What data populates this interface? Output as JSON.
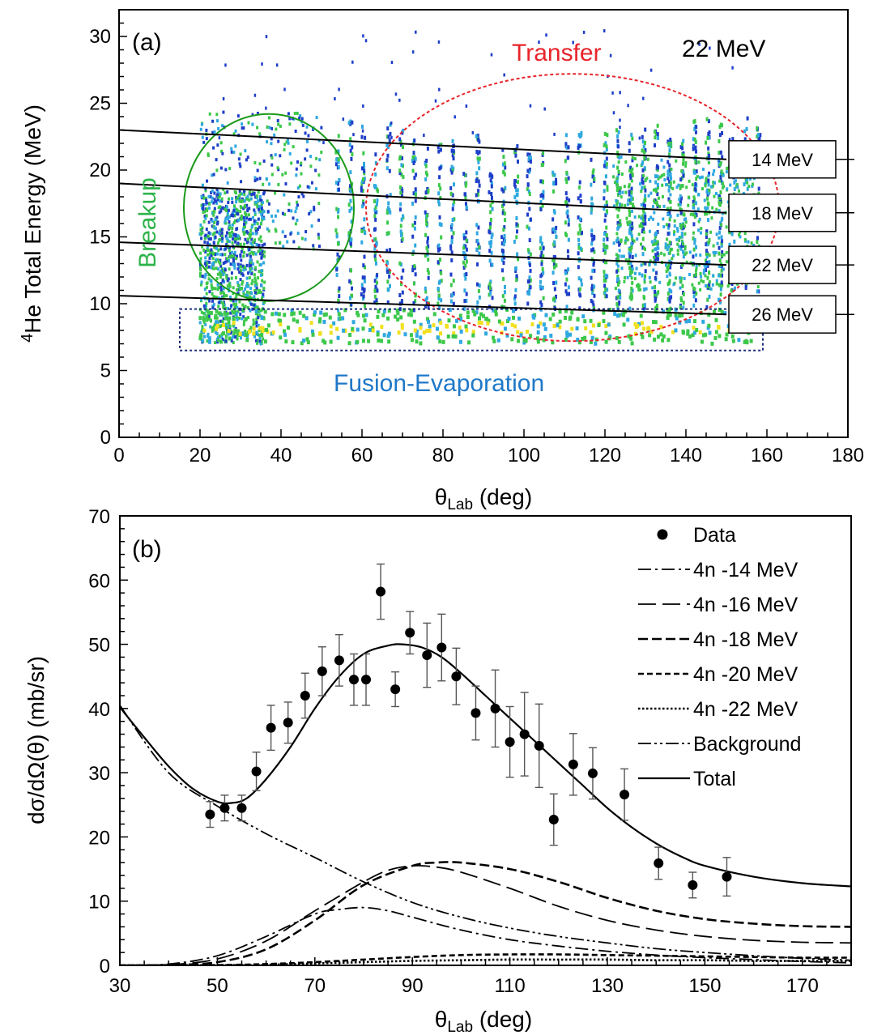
{
  "chart_data": [
    {
      "panel": "(a)",
      "type": "heatmap",
      "title": "22 MeV",
      "xlabel_main": "θ",
      "xlabel_sub": "Lab",
      "xlabel_unit": " (deg)",
      "ylabel_sup": "4",
      "ylabel_main": "He Total Energy (MeV)",
      "xlim": [
        0,
        180
      ],
      "ylim": [
        0,
        32
      ],
      "xticks": [
        0,
        20,
        40,
        60,
        80,
        100,
        120,
        140,
        160,
        180
      ],
      "yticks": [
        0,
        5,
        10,
        15,
        20,
        25,
        30
      ],
      "annotations": [
        {
          "text": "(a)",
          "color": "#000000"
        },
        {
          "text": "Transfer",
          "color": "#e8242a"
        },
        {
          "text": "Breakup",
          "color": "#2cb34a"
        },
        {
          "text": "Fusion-Evaporation",
          "color": "#1f78c8"
        }
      ],
      "kinematic_lines": [
        {
          "label": "14 MeV",
          "x": [
            0,
            150
          ],
          "y": [
            23.0,
            20.8
          ]
        },
        {
          "label": "18 MeV",
          "x": [
            0,
            150
          ],
          "y": [
            19.0,
            16.8
          ]
        },
        {
          "label": "22 MeV",
          "x": [
            0,
            150
          ],
          "y": [
            14.6,
            12.9
          ]
        },
        {
          "label": "26 MeV",
          "x": [
            0,
            150
          ],
          "y": [
            10.6,
            9.2
          ]
        }
      ],
      "regions": {
        "breakup_circle": {
          "cx": 37,
          "cy": 17.2,
          "rx": 21,
          "ry": 7.0,
          "color": "#1a9a1a"
        },
        "transfer_ellipse": {
          "cx": 112,
          "cy": 17.2,
          "rx": 51,
          "ry": 10.0,
          "color": "#e8242a"
        },
        "fusion_box": {
          "x0": 15,
          "x1": 159,
          "y0": 6.5,
          "y1": 9.6,
          "color": "#1a2a7a"
        }
      },
      "colors": {
        "low": "#1e3fc8",
        "mid": "#2fa8e0",
        "high": "#3cc84a",
        "peak": "#f0e020"
      }
    },
    {
      "panel": "(b)",
      "type": "scatter",
      "xlabel_main": "θ",
      "xlabel_sub": "Lab",
      "xlabel_unit": " (deg)",
      "ylabel": "dσ/dΩ(θ) (mb/sr)",
      "xlim": [
        30,
        180
      ],
      "ylim": [
        0,
        70
      ],
      "xticks": [
        30,
        50,
        70,
        90,
        110,
        130,
        150,
        170
      ],
      "yticks": [
        0,
        10,
        20,
        30,
        40,
        50,
        60,
        70
      ],
      "annotations": [
        {
          "text": "(b)"
        }
      ],
      "legend_labels": [
        "Data",
        "4n -14 MeV",
        "4n -16 MeV",
        "4n -18 MeV",
        "4n -20 MeV",
        "4n -22 MeV",
        "Background",
        "Total"
      ],
      "data": {
        "x": [
          48.5,
          51.5,
          55.0,
          58.0,
          61.0,
          64.5,
          68.0,
          71.5,
          75.0,
          78.0,
          80.5,
          83.5,
          86.5,
          89.5,
          93.0,
          96.0,
          99.0,
          103.0,
          107.0,
          110.0,
          113.0,
          116.0,
          119.0,
          123.0,
          127.0,
          133.5,
          140.5,
          147.5,
          154.5
        ],
        "y": [
          23.5,
          24.5,
          24.5,
          30.2,
          37.0,
          37.8,
          42.0,
          45.8,
          47.5,
          44.5,
          44.5,
          58.2,
          43.0,
          51.8,
          48.3,
          49.5,
          45.0,
          39.3,
          40.0,
          34.8,
          36.0,
          34.2,
          22.7,
          31.3,
          29.9,
          26.6,
          15.9,
          12.5,
          13.8
        ],
        "err": [
          2.0,
          2.0,
          2.0,
          3.0,
          3.5,
          3.2,
          3.5,
          3.8,
          4.0,
          4.0,
          4.0,
          4.3,
          2.7,
          3.3,
          5.0,
          5.2,
          4.4,
          4.2,
          6.0,
          5.5,
          6.5,
          6.5,
          4.0,
          4.8,
          4.0,
          4.0,
          2.5,
          2.0,
          3.0
        ]
      },
      "series": [
        {
          "name": "4n -14 MeV",
          "x": [
            30,
            40,
            50,
            60,
            70,
            75,
            80,
            85,
            90,
            100,
            110,
            120,
            130,
            140,
            150,
            160,
            170,
            180
          ],
          "y": [
            0,
            0.2,
            1.5,
            4.5,
            8.0,
            8.7,
            9.0,
            8.5,
            7.5,
            5.5,
            4.0,
            3.0,
            2.2,
            1.6,
            1.2,
            0.9,
            0.6,
            0.4
          ]
        },
        {
          "name": "4n -16 MeV",
          "x": [
            30,
            40,
            50,
            60,
            70,
            80,
            85,
            90,
            95,
            100,
            110,
            120,
            130,
            140,
            150,
            160,
            170,
            180
          ],
          "y": [
            0,
            0.1,
            1.0,
            3.8,
            8.5,
            13.0,
            14.8,
            15.5,
            15.3,
            14.5,
            12.0,
            9.2,
            7.0,
            5.5,
            4.5,
            3.9,
            3.6,
            3.5
          ]
        },
        {
          "name": "4n -18 MeV",
          "x": [
            30,
            40,
            50,
            60,
            70,
            80,
            90,
            95,
            100,
            110,
            120,
            130,
            140,
            150,
            160,
            170,
            180
          ],
          "y": [
            0,
            0.05,
            0.5,
            2.5,
            7.0,
            12.5,
            15.5,
            16.0,
            16.0,
            15.0,
            13.0,
            10.5,
            8.5,
            7.2,
            6.5,
            6.1,
            6.0
          ]
        },
        {
          "name": "4n -20 MeV",
          "x": [
            30,
            50,
            60,
            70,
            80,
            90,
            100,
            110,
            120,
            130,
            140,
            150,
            160,
            170,
            180
          ],
          "y": [
            0,
            0.05,
            0.2,
            0.5,
            0.9,
            1.3,
            1.6,
            1.7,
            1.7,
            1.6,
            1.5,
            1.4,
            1.3,
            1.2,
            1.2
          ]
        },
        {
          "name": "4n -22 MeV",
          "x": [
            30,
            50,
            60,
            70,
            80,
            90,
            100,
            110,
            120,
            130,
            140,
            150,
            160,
            170,
            180
          ],
          "y": [
            0,
            0.02,
            0.1,
            0.3,
            0.5,
            0.7,
            0.8,
            0.9,
            0.9,
            0.9,
            0.8,
            0.8,
            0.7,
            0.7,
            0.7
          ]
        },
        {
          "name": "Background",
          "x": [
            30,
            40,
            50,
            60,
            70,
            80,
            90,
            100,
            110,
            120,
            130,
            140,
            150,
            160,
            170,
            180
          ],
          "y": [
            40.5,
            30.0,
            24.8,
            20.5,
            16.8,
            13.0,
            9.8,
            7.5,
            5.8,
            4.5,
            3.5,
            2.6,
            2.0,
            1.5,
            1.1,
            0.8
          ]
        },
        {
          "name": "Total",
          "x": [
            30,
            35,
            40,
            45,
            50,
            53,
            56,
            60,
            65,
            70,
            75,
            80,
            85,
            88,
            92,
            96,
            100,
            105,
            110,
            115,
            120,
            125,
            130,
            135,
            140,
            145,
            150,
            160,
            170,
            180
          ],
          "y": [
            40.2,
            35.5,
            31.0,
            27.5,
            25.5,
            25.3,
            26.0,
            29.0,
            34.0,
            40.0,
            45.0,
            48.5,
            49.8,
            50.0,
            49.5,
            48.0,
            45.5,
            42.0,
            38.5,
            35.0,
            31.5,
            28.0,
            24.5,
            21.5,
            19.0,
            17.0,
            15.5,
            13.8,
            12.8,
            12.3
          ]
        }
      ]
    }
  ]
}
